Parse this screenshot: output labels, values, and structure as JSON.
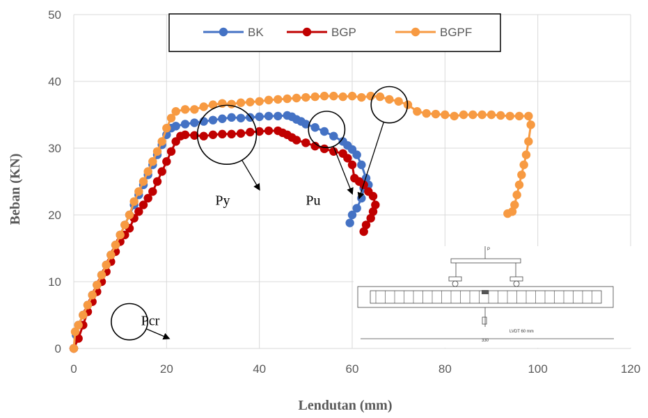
{
  "chart_data": {
    "type": "line",
    "xlabel": "Lendutan (mm)",
    "ylabel": "Beban (KN)",
    "xlim": [
      0,
      120
    ],
    "ylim": [
      0,
      50
    ],
    "xticks": [
      "0",
      "20",
      "40",
      "60",
      "80",
      "100",
      "120"
    ],
    "yticks": [
      "0",
      "10",
      "20",
      "30",
      "40",
      "50"
    ],
    "grid": true,
    "legend_position": "top-center",
    "series": [
      {
        "name": "BK",
        "color": "#4472C4",
        "points": [
          [
            0,
            0
          ],
          [
            0.5,
            2
          ],
          [
            1,
            3.5
          ],
          [
            2,
            5
          ],
          [
            3,
            6.5
          ],
          [
            4,
            8
          ],
          [
            5,
            9.5
          ],
          [
            6,
            11
          ],
          [
            7,
            12.5
          ],
          [
            8,
            14
          ],
          [
            9,
            15.5
          ],
          [
            10,
            17
          ],
          [
            11,
            18.5
          ],
          [
            12,
            20
          ],
          [
            13,
            21.5
          ],
          [
            14,
            23
          ],
          [
            15,
            24.5
          ],
          [
            16,
            26
          ],
          [
            17,
            27.5
          ],
          [
            18,
            29
          ],
          [
            19,
            30.5
          ],
          [
            20,
            32
          ],
          [
            21,
            33
          ],
          [
            22,
            33.3
          ],
          [
            24,
            33.6
          ],
          [
            26,
            33.8
          ],
          [
            28,
            34
          ],
          [
            30,
            34.2
          ],
          [
            32,
            34.4
          ],
          [
            34,
            34.6
          ],
          [
            36,
            34.5
          ],
          [
            38,
            34.6
          ],
          [
            40,
            34.7
          ],
          [
            42,
            34.8
          ],
          [
            44,
            34.8
          ],
          [
            46,
            34.9
          ],
          [
            47,
            34.7
          ],
          [
            48,
            34.3
          ],
          [
            49,
            34
          ],
          [
            50,
            33.6
          ],
          [
            52,
            33.1
          ],
          [
            54,
            32.5
          ],
          [
            56,
            31.8
          ],
          [
            58,
            31
          ],
          [
            59,
            30.4
          ],
          [
            60,
            29.8
          ],
          [
            61,
            29
          ],
          [
            62,
            27.5
          ],
          [
            63,
            25.5
          ],
          [
            63.5,
            24.5
          ],
          [
            62.5,
            24
          ],
          [
            62,
            22.5
          ],
          [
            61,
            21
          ],
          [
            60,
            20
          ],
          [
            59.5,
            18.8
          ]
        ]
      },
      {
        "name": "BGP",
        "color": "#C00000",
        "points": [
          [
            0,
            0
          ],
          [
            1,
            1.5
          ],
          [
            2,
            3.5
          ],
          [
            3,
            5.5
          ],
          [
            4,
            7
          ],
          [
            5,
            8.5
          ],
          [
            6,
            10
          ],
          [
            7,
            11.5
          ],
          [
            8,
            13
          ],
          [
            9,
            14.5
          ],
          [
            10,
            16
          ],
          [
            11,
            17
          ],
          [
            12,
            18
          ],
          [
            13,
            19.5
          ],
          [
            14,
            20.5
          ],
          [
            15,
            21.5
          ],
          [
            16,
            22.5
          ],
          [
            17,
            23.5
          ],
          [
            18,
            25
          ],
          [
            19,
            26.5
          ],
          [
            20,
            28
          ],
          [
            21,
            29.5
          ],
          [
            22,
            31
          ],
          [
            23,
            31.8
          ],
          [
            24,
            32
          ],
          [
            26,
            31.9
          ],
          [
            28,
            31.8
          ],
          [
            30,
            32
          ],
          [
            32,
            32.1
          ],
          [
            34,
            32.1
          ],
          [
            36,
            32.2
          ],
          [
            38,
            32.4
          ],
          [
            40,
            32.5
          ],
          [
            42,
            32.6
          ],
          [
            44,
            32.6
          ],
          [
            45,
            32.3
          ],
          [
            46,
            32
          ],
          [
            47,
            31.6
          ],
          [
            48,
            31.2
          ],
          [
            50,
            30.8
          ],
          [
            52,
            30.3
          ],
          [
            54,
            29.9
          ],
          [
            56,
            29.5
          ],
          [
            58,
            29.2
          ],
          [
            59,
            28.5
          ],
          [
            60,
            27.5
          ],
          [
            60.5,
            25.5
          ],
          [
            61.5,
            25
          ],
          [
            62.5,
            24.5
          ],
          [
            63.5,
            23.5
          ],
          [
            64.5,
            22.8
          ],
          [
            65,
            21.5
          ],
          [
            64.5,
            20.5
          ],
          [
            64,
            19.5
          ],
          [
            63,
            18.5
          ],
          [
            62.5,
            17.5
          ]
        ]
      },
      {
        "name": "BGPF",
        "color": "#F79A42",
        "points": [
          [
            0,
            0
          ],
          [
            0.3,
            2.5
          ],
          [
            1,
            3.5
          ],
          [
            2,
            5
          ],
          [
            3,
            6.5
          ],
          [
            4,
            8
          ],
          [
            5,
            9.5
          ],
          [
            6,
            11
          ],
          [
            7,
            12.5
          ],
          [
            8,
            14
          ],
          [
            9,
            15.5
          ],
          [
            10,
            17
          ],
          [
            11,
            18.5
          ],
          [
            12,
            20
          ],
          [
            13,
            22
          ],
          [
            14,
            23.5
          ],
          [
            15,
            25
          ],
          [
            16,
            26.5
          ],
          [
            17,
            28
          ],
          [
            18,
            29.5
          ],
          [
            19,
            31
          ],
          [
            20,
            33
          ],
          [
            21,
            34.5
          ],
          [
            22,
            35.5
          ],
          [
            24,
            35.8
          ],
          [
            26,
            35.8
          ],
          [
            28,
            36.2
          ],
          [
            30,
            36.5
          ],
          [
            32,
            36.7
          ],
          [
            34,
            36.6
          ],
          [
            36,
            36.8
          ],
          [
            38,
            36.9
          ],
          [
            40,
            37
          ],
          [
            42,
            37.2
          ],
          [
            44,
            37.3
          ],
          [
            46,
            37.4
          ],
          [
            48,
            37.5
          ],
          [
            50,
            37.6
          ],
          [
            52,
            37.7
          ],
          [
            54,
            37.8
          ],
          [
            56,
            37.8
          ],
          [
            58,
            37.7
          ],
          [
            60,
            37.8
          ],
          [
            62,
            37.6
          ],
          [
            64,
            37.8
          ],
          [
            66,
            37.7
          ],
          [
            68,
            37.3
          ],
          [
            70,
            37
          ],
          [
            72,
            36.5
          ],
          [
            74,
            35.5
          ],
          [
            76,
            35.2
          ],
          [
            78,
            35.1
          ],
          [
            80,
            35
          ],
          [
            82,
            34.8
          ],
          [
            84,
            35
          ],
          [
            86,
            35
          ],
          [
            88,
            35
          ],
          [
            90,
            35
          ],
          [
            92,
            34.9
          ],
          [
            94,
            34.8
          ],
          [
            96,
            34.8
          ],
          [
            98,
            34.8
          ],
          [
            98.5,
            33.5
          ],
          [
            98,
            31
          ],
          [
            97.5,
            29
          ],
          [
            97,
            27.5
          ],
          [
            96.5,
            26
          ],
          [
            96,
            24.5
          ],
          [
            95.5,
            23
          ],
          [
            95,
            21.5
          ],
          [
            94.5,
            20.5
          ],
          [
            93.5,
            20.2
          ]
        ]
      }
    ],
    "annotations": [
      {
        "label": "Py",
        "x": 30.5,
        "y": 21.5
      },
      {
        "label": "Pu",
        "x": 50,
        "y": 21.5
      },
      {
        "label": "Pcr",
        "x": 14.5,
        "y": 3.5
      }
    ],
    "circle_markers": [
      {
        "cx": 33,
        "cy": 32,
        "r": 6.5,
        "arrow_to": [
          40,
          23.8
        ]
      },
      {
        "cx": 54.5,
        "cy": 32.8,
        "r": 4,
        "arrow_to": [
          60,
          23.2
        ]
      },
      {
        "cx": 68,
        "cy": 36.5,
        "r": 4,
        "arrow_to": [
          61.5,
          22.5
        ]
      },
      {
        "cx": 12,
        "cy": 4,
        "r": 4,
        "arrow_to": [
          20.5,
          1.5
        ]
      }
    ]
  },
  "inset": {
    "load_label": "P",
    "sensor_label": "LVDT 60 mm",
    "span_label": "330"
  }
}
